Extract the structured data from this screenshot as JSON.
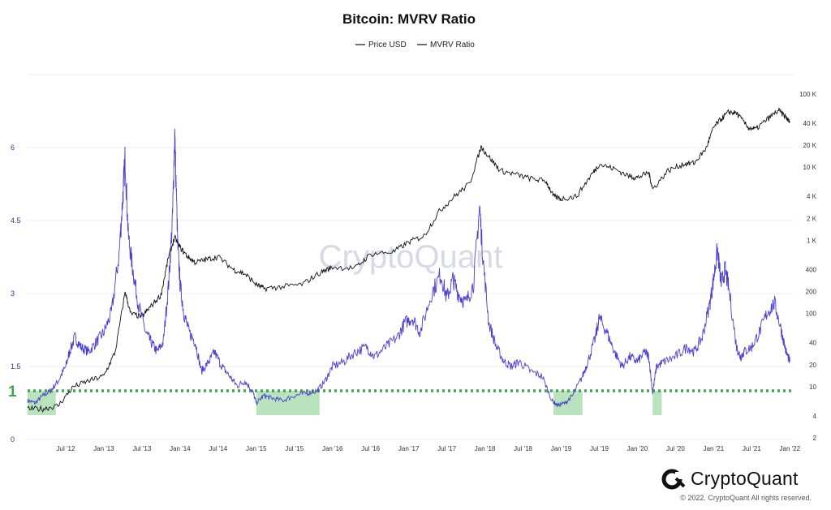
{
  "chart_data": {
    "type": "line",
    "title": "Bitcoin: MVRV Ratio",
    "legend": [
      {
        "name": "Price USD",
        "color": "#111111"
      },
      {
        "name": "MVRV Ratio",
        "color": "#4b3fcf"
      }
    ],
    "legend_position": "top-center",
    "x_ticks": [
      "Jul '12",
      "Jan '13",
      "Jul '13",
      "Jan '14",
      "Jul '14",
      "Jan '15",
      "Jul '15",
      "Jan '16",
      "Jul '16",
      "Jan '17",
      "Jul '17",
      "Jan '18",
      "Jul '18",
      "Jan '19",
      "Jul '19",
      "Jan '20",
      "Jul '20",
      "Jan '21",
      "Jul '21",
      "Jan '22"
    ],
    "x_range": [
      2012.0,
      2022.05
    ],
    "y_left": {
      "ticks": [
        "0",
        "1.5",
        "3",
        "4.5",
        "6"
      ],
      "range": [
        0,
        7.5
      ],
      "color": "#3333aa"
    },
    "y_right": {
      "ticks": [
        "2",
        "4",
        "10",
        "20",
        "40",
        "100",
        "200",
        "400",
        "1 K",
        "2 K",
        "4 K",
        "10 K",
        "20 K",
        "40 K",
        "100 K"
      ],
      "scale": "log",
      "range": [
        2,
        100000
      ]
    },
    "threshold": {
      "value": 1,
      "label": "1",
      "color": "#3da64b",
      "style": "dotted"
    },
    "undervalued_zones": [
      [
        2012.0,
        2012.37
      ],
      [
        2015.0,
        2015.83
      ],
      [
        2018.9,
        2019.28
      ],
      [
        2020.2,
        2020.32
      ]
    ],
    "zone_color": "#b9e3bd",
    "series": [
      {
        "name": "MVRV Ratio",
        "axis": "left",
        "color": "#4b3fcf",
        "x": [
          2012.0,
          2012.1,
          2012.2,
          2012.3,
          2012.4,
          2012.5,
          2012.55,
          2012.62,
          2012.7,
          2012.8,
          2012.9,
          2013.0,
          2013.1,
          2013.2,
          2013.25,
          2013.28,
          2013.32,
          2013.38,
          2013.45,
          2013.55,
          2013.62,
          2013.7,
          2013.78,
          2013.85,
          2013.9,
          2013.93,
          2013.97,
          2014.0,
          2014.05,
          2014.12,
          2014.2,
          2014.28,
          2014.38,
          2014.45,
          2014.55,
          2014.65,
          2014.75,
          2014.85,
          2014.95,
          2015.0,
          2015.1,
          2015.2,
          2015.35,
          2015.5,
          2015.65,
          2015.8,
          2015.9,
          2016.0,
          2016.15,
          2016.3,
          2016.45,
          2016.55,
          2016.7,
          2016.85,
          2016.95,
          2017.05,
          2017.15,
          2017.3,
          2017.42,
          2017.5,
          2017.58,
          2017.65,
          2017.75,
          2017.85,
          2017.93,
          2017.97,
          2018.05,
          2018.15,
          2018.25,
          2018.35,
          2018.45,
          2018.6,
          2018.75,
          2018.88,
          2018.95,
          2019.05,
          2019.15,
          2019.28,
          2019.35,
          2019.45,
          2019.5,
          2019.6,
          2019.7,
          2019.8,
          2019.9,
          2020.0,
          2020.1,
          2020.15,
          2020.2,
          2020.25,
          2020.35,
          2020.5,
          2020.65,
          2020.75,
          2020.85,
          2020.95,
          2021.0,
          2021.05,
          2021.1,
          2021.15,
          2021.2,
          2021.3,
          2021.35,
          2021.4,
          2021.5,
          2021.6,
          2021.7,
          2021.8,
          2021.88,
          2021.95,
          2022.0
        ],
        "y": [
          0.8,
          0.75,
          0.9,
          1.0,
          1.2,
          1.5,
          1.8,
          2.1,
          1.9,
          1.8,
          2.0,
          2.2,
          2.6,
          3.8,
          5.0,
          5.8,
          4.2,
          3.5,
          2.8,
          2.2,
          2.0,
          1.8,
          2.0,
          3.2,
          4.5,
          6.3,
          4.0,
          3.2,
          2.6,
          2.2,
          2.0,
          1.4,
          1.6,
          1.8,
          1.5,
          1.3,
          1.1,
          1.2,
          1.0,
          0.75,
          0.9,
          0.85,
          0.8,
          0.9,
          0.95,
          1.0,
          1.2,
          1.5,
          1.6,
          1.8,
          1.9,
          1.7,
          1.9,
          2.1,
          2.4,
          2.5,
          2.2,
          3.0,
          3.4,
          2.9,
          3.3,
          3.0,
          2.8,
          3.2,
          4.8,
          3.8,
          2.4,
          1.9,
          1.6,
          1.5,
          1.6,
          1.4,
          1.3,
          0.8,
          0.7,
          0.75,
          0.9,
          1.3,
          1.6,
          2.1,
          2.5,
          2.2,
          1.8,
          1.5,
          1.7,
          1.6,
          1.8,
          1.7,
          0.95,
          1.5,
          1.6,
          1.7,
          1.9,
          1.8,
          2.1,
          2.8,
          3.3,
          3.9,
          3.2,
          3.5,
          3.1,
          1.9,
          1.7,
          1.8,
          1.9,
          2.2,
          2.6,
          2.8,
          2.3,
          1.8,
          1.6
        ]
      },
      {
        "name": "Price USD",
        "axis": "right",
        "color": "#111111",
        "x": [
          2012.0,
          2012.2,
          2012.4,
          2012.6,
          2012.8,
          2013.0,
          2013.15,
          2013.28,
          2013.35,
          2013.5,
          2013.6,
          2013.75,
          2013.85,
          2013.93,
          2014.0,
          2014.1,
          2014.2,
          2014.35,
          2014.5,
          2014.7,
          2014.85,
          2015.0,
          2015.1,
          2015.3,
          2015.6,
          2015.85,
          2016.0,
          2016.3,
          2016.5,
          2016.8,
          2017.0,
          2017.2,
          2017.4,
          2017.6,
          2017.8,
          2017.95,
          2018.05,
          2018.2,
          2018.4,
          2018.6,
          2018.8,
          2018.9,
          2019.0,
          2019.2,
          2019.4,
          2019.5,
          2019.7,
          2019.9,
          2020.0,
          2020.15,
          2020.2,
          2020.4,
          2020.6,
          2020.75,
          2020.9,
          2021.0,
          2021.1,
          2021.2,
          2021.3,
          2021.45,
          2021.55,
          2021.7,
          2021.85,
          2021.95,
          2022.0
        ],
        "y": [
          5,
          5,
          5.5,
          10,
          12,
          14,
          30,
          200,
          100,
          90,
          120,
          180,
          600,
          1100,
          800,
          600,
          500,
          550,
          600,
          400,
          350,
          250,
          220,
          230,
          250,
          370,
          430,
          420,
          650,
          700,
          950,
          1150,
          2500,
          4000,
          6000,
          19000,
          14000,
          9000,
          8000,
          7000,
          6500,
          4000,
          3700,
          4000,
          8000,
          11000,
          9500,
          7500,
          7200,
          8500,
          5000,
          9000,
          11000,
          11500,
          18000,
          35000,
          46000,
          57000,
          55000,
          35000,
          33000,
          45000,
          60000,
          48000,
          41000
        ]
      }
    ]
  },
  "watermark": "CryptoQuant",
  "brand": {
    "name": "CryptoQuant",
    "copyright": "© 2022. CryptoQuant All rights reserved."
  }
}
